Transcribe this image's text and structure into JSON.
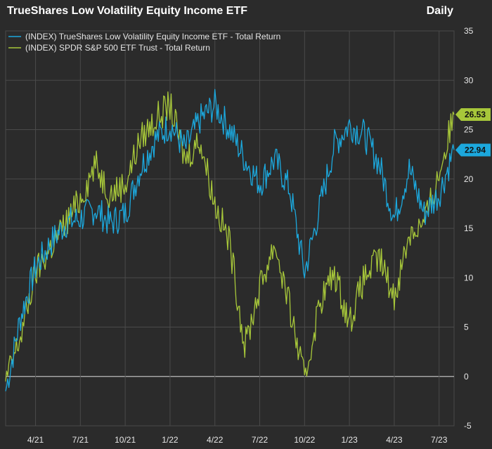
{
  "header": {
    "title": "TrueShares Low Volatility Equity Income ETF",
    "frequency": "Daily"
  },
  "colors": {
    "background": "#2b2b2b",
    "grid": "#4a4a4a",
    "zero_line": "#bdbdbd",
    "text": "#e6e6e6",
    "series_etf": "#1ca8dd",
    "series_spy": "#a7c73a"
  },
  "chart_data": {
    "type": "line",
    "title": "TrueShares Low Volatility Equity Income ETF",
    "xlabel": "",
    "ylabel": "",
    "ylim": [
      -5,
      35
    ],
    "y_ticks": [
      35,
      30,
      25,
      20,
      15,
      10,
      5,
      0,
      -5
    ],
    "y_axis_side": "right",
    "x_tick_labels": [
      "4/21",
      "7/21",
      "10/21",
      "1/22",
      "4/22",
      "7/22",
      "10/22",
      "1/23",
      "4/23",
      "7/23"
    ],
    "x": [
      "2/21",
      "3/21",
      "4/21",
      "5/21",
      "6/21",
      "7/21",
      "8/21",
      "9/21",
      "10/21",
      "11/21",
      "12/21",
      "1/22",
      "2/22",
      "3/22",
      "4/22",
      "5/22",
      "6/22",
      "7/22",
      "8/22",
      "9/22",
      "10/22",
      "11/22",
      "12/22",
      "1/23",
      "2/23",
      "3/23",
      "4/23",
      "5/23",
      "6/23",
      "7/23",
      "8/23"
    ],
    "series": [
      {
        "name": "(INDEX) TrueShares Low Volatility Equity Income ETF - Total Return",
        "values": [
          -1.5,
          6.0,
          11.0,
          13.5,
          15.5,
          16.0,
          17.0,
          15.5,
          16.5,
          21.0,
          24.0,
          25.5,
          23.0,
          26.0,
          27.5,
          25.0,
          22.0,
          19.5,
          22.0,
          19.0,
          10.5,
          17.0,
          23.5,
          25.5,
          24.5,
          21.5,
          16.0,
          21.0,
          16.5,
          18.5,
          22.94
        ],
        "last_value": "22.94"
      },
      {
        "name": "(INDEX) SPDR S&P 500 ETF Trust - Total Return",
        "values": [
          -0.5,
          4.0,
          10.5,
          13.0,
          15.5,
          18.0,
          21.5,
          18.5,
          19.5,
          24.0,
          26.0,
          27.5,
          22.0,
          24.0,
          17.5,
          13.5,
          3.0,
          9.0,
          13.5,
          7.0,
          -0.5,
          7.5,
          10.5,
          5.5,
          10.0,
          12.0,
          8.0,
          14.5,
          15.5,
          20.5,
          26.53
        ],
        "last_value": "26.53"
      }
    ],
    "legend_position": "top-left",
    "grid": true
  }
}
